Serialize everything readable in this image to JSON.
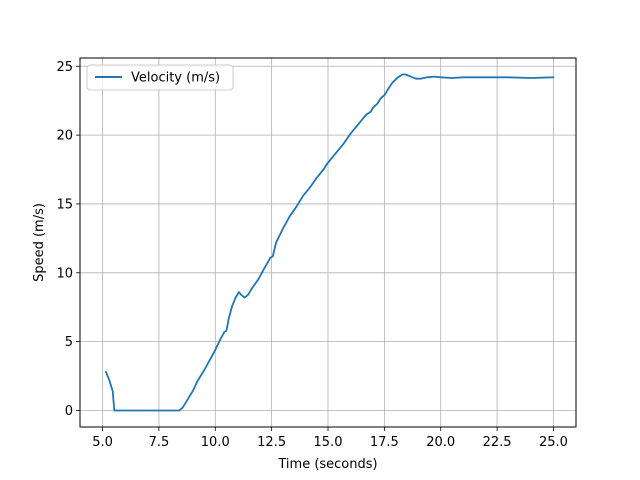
{
  "chart_data": {
    "type": "line",
    "xlabel": "Time (seconds)",
    "ylabel": "Speed (m/s)",
    "xlim": [
      4.0,
      26.0
    ],
    "ylim": [
      -1.2,
      25.6
    ],
    "x_ticks": [
      5.0,
      7.5,
      10.0,
      12.5,
      15.0,
      17.5,
      20.0,
      22.5,
      25.0
    ],
    "x_tick_labels": [
      "5.0",
      "7.5",
      "10.0",
      "12.5",
      "15.0",
      "17.5",
      "20.0",
      "22.5",
      "25.0"
    ],
    "y_ticks": [
      0,
      5,
      10,
      15,
      20,
      25
    ],
    "y_tick_labels": [
      "0",
      "5",
      "10",
      "15",
      "20",
      "25"
    ],
    "grid": true,
    "legend_position": "upper-left",
    "series": [
      {
        "name": "Velocity (m/s)",
        "color": "#1f77b4",
        "x": [
          5.15,
          5.3,
          5.45,
          5.52,
          6.0,
          7.0,
          8.0,
          8.4,
          8.55,
          8.7,
          8.85,
          9.0,
          9.2,
          9.5,
          9.8,
          10.0,
          10.2,
          10.4,
          10.5,
          10.6,
          10.75,
          10.9,
          11.05,
          11.15,
          11.3,
          11.45,
          11.6,
          11.9,
          12.2,
          12.45,
          12.55,
          12.7,
          13.0,
          13.3,
          13.6,
          13.9,
          14.2,
          14.5,
          14.8,
          14.95,
          15.3,
          15.7,
          16.0,
          16.4,
          16.7,
          16.9,
          17.0,
          17.2,
          17.35,
          17.5,
          17.65,
          17.85,
          18.1,
          18.3,
          18.45,
          18.6,
          18.75,
          18.9,
          19.1,
          19.4,
          19.7,
          20.0,
          20.5,
          21.0,
          21.5,
          22.0,
          23.0,
          24.0,
          25.0
        ],
        "y": [
          2.8,
          2.2,
          1.4,
          0.0,
          0.0,
          0.0,
          0.0,
          0.0,
          0.2,
          0.6,
          1.0,
          1.4,
          2.1,
          2.9,
          3.8,
          4.4,
          5.1,
          5.7,
          5.8,
          6.7,
          7.6,
          8.2,
          8.6,
          8.4,
          8.2,
          8.4,
          8.8,
          9.5,
          10.4,
          11.1,
          11.2,
          12.2,
          13.2,
          14.1,
          14.8,
          15.6,
          16.2,
          16.9,
          17.5,
          17.9,
          18.6,
          19.4,
          20.1,
          20.9,
          21.5,
          21.7,
          22.0,
          22.3,
          22.7,
          22.9,
          23.3,
          23.8,
          24.2,
          24.4,
          24.4,
          24.3,
          24.2,
          24.1,
          24.1,
          24.2,
          24.25,
          24.2,
          24.15,
          24.2,
          24.2,
          24.2,
          24.2,
          24.15,
          24.2
        ]
      }
    ]
  }
}
